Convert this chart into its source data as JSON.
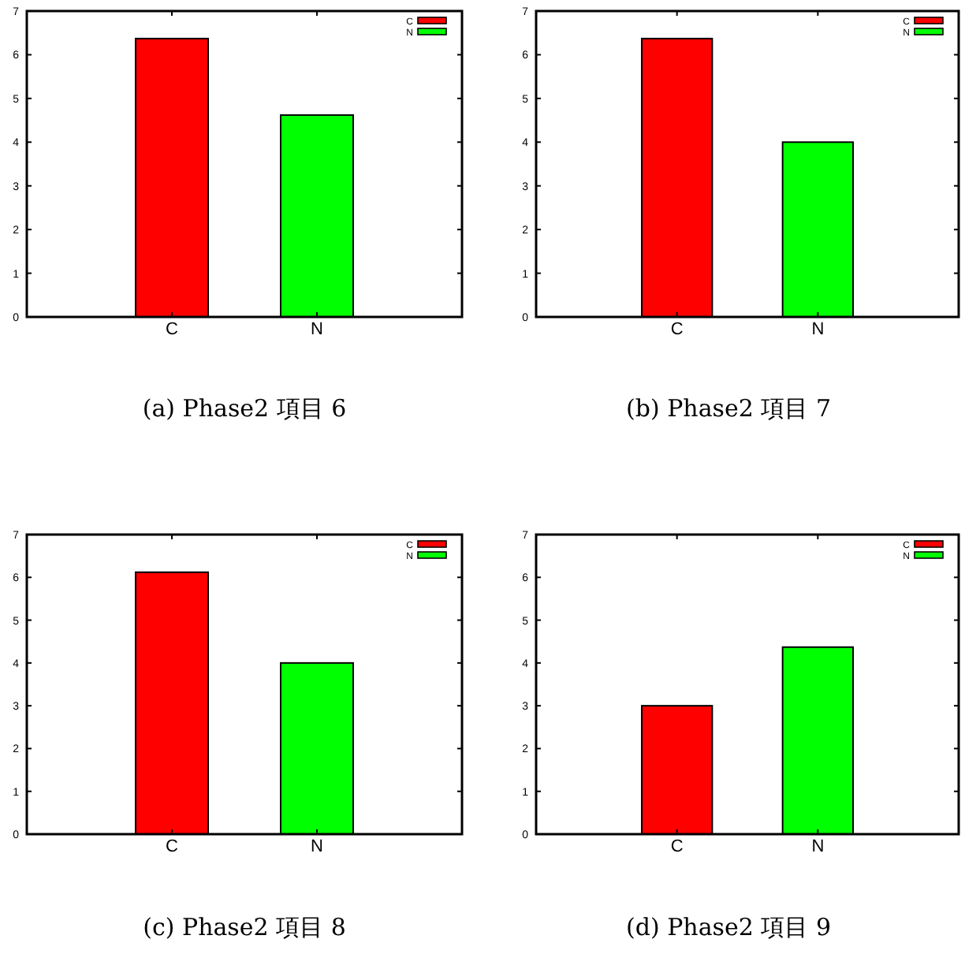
{
  "chart_data": [
    {
      "type": "bar",
      "title": "(a) Phase2 項目 6",
      "categories": [
        "C",
        "N"
      ],
      "series": [
        {
          "name": "C",
          "color": "#ff0000",
          "values": [
            6.37,
            null
          ]
        },
        {
          "name": "N",
          "color": "#00ff00",
          "values": [
            null,
            4.62
          ]
        }
      ],
      "ylim": [
        0,
        7
      ],
      "yticks": [
        0,
        1,
        2,
        3,
        4,
        5,
        6,
        7
      ],
      "legend": "top right",
      "grid": false
    },
    {
      "type": "bar",
      "title": "(b) Phase2 項目 7",
      "categories": [
        "C",
        "N"
      ],
      "series": [
        {
          "name": "C",
          "color": "#ff0000",
          "values": [
            6.37,
            null
          ]
        },
        {
          "name": "N",
          "color": "#00ff00",
          "values": [
            null,
            4.0
          ]
        }
      ],
      "ylim": [
        0,
        7
      ],
      "yticks": [
        0,
        1,
        2,
        3,
        4,
        5,
        6,
        7
      ],
      "legend": "top right",
      "grid": false
    },
    {
      "type": "bar",
      "title": "(c) Phase2 項目 8",
      "categories": [
        "C",
        "N"
      ],
      "series": [
        {
          "name": "C",
          "color": "#ff0000",
          "values": [
            6.12,
            null
          ]
        },
        {
          "name": "N",
          "color": "#00ff00",
          "values": [
            null,
            4.0
          ]
        }
      ],
      "ylim": [
        0,
        7
      ],
      "yticks": [
        0,
        1,
        2,
        3,
        4,
        5,
        6,
        7
      ],
      "legend": "top right",
      "grid": false
    },
    {
      "type": "bar",
      "title": "(d) Phase2 項目 9",
      "categories": [
        "C",
        "N"
      ],
      "series": [
        {
          "name": "C",
          "color": "#ff0000",
          "values": [
            3.0,
            null
          ]
        },
        {
          "name": "N",
          "color": "#00ff00",
          "values": [
            null,
            4.37
          ]
        }
      ],
      "ylim": [
        0,
        7
      ],
      "yticks": [
        0,
        1,
        2,
        3,
        4,
        5,
        6,
        7
      ],
      "legend": "top right",
      "grid": false
    }
  ]
}
